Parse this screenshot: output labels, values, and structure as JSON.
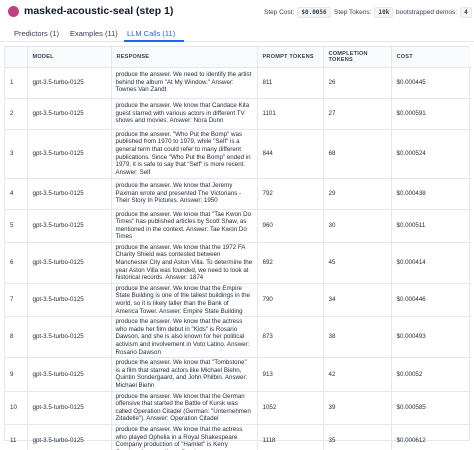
{
  "header": {
    "title": "masked-acoustic-seal (step 1)",
    "stats": [
      {
        "label": "Step Cost:",
        "value": "$0.0056"
      },
      {
        "label": "Step Tokens:",
        "value": "10k"
      },
      {
        "label": "bootstrapped demos:",
        "value": "4"
      }
    ],
    "accent_color": "#c0417f"
  },
  "tabs": [
    {
      "label": "Predictors (1)",
      "active": false
    },
    {
      "label": "Examples (11)",
      "active": false
    },
    {
      "label": "LLM Calls (11)",
      "active": true
    }
  ],
  "table": {
    "columns": [
      "",
      "MODEL",
      "RESPONSE",
      "PROMPT TOKENS",
      "COMPLETION TOKENS",
      "COST"
    ],
    "rows": [
      {
        "index": "1",
        "model": "gpt-3.5-turbo-0125",
        "response": "produce the answer. We need to identify the artist behind the album \"At My Window.\" Answer: Townes Van Zandt",
        "prompt_tokens": "811",
        "completion_tokens": "26",
        "cost": "$0.000445"
      },
      {
        "index": "2",
        "model": "gpt-3.5-turbo-0125",
        "response": "produce the answer. We know that Candace Kita guest starred with various actors in different TV shows and movies. Answer: Nora Dunn",
        "prompt_tokens": "1101",
        "completion_tokens": "27",
        "cost": "$0.000591"
      },
      {
        "index": "3",
        "model": "gpt-3.5-turbo-0125",
        "response": "produce the answer. \"Who Put the Bomp\" was published from 1970 to 1979, while \"Self\" is a general term that could refer to many different publications. Since \"Who Put the Bomp\" ended in 1979, it is safe to say that \"Self\" is more recent. Answer: Self",
        "prompt_tokens": "844",
        "completion_tokens": "68",
        "cost": "$0.000524"
      },
      {
        "index": "4",
        "model": "gpt-3.5-turbo-0125",
        "response": "produce the answer. We know that Jeremy Paxman wrote and presented The Victorians - Their Story In Pictures. Answer: 1950",
        "prompt_tokens": "792",
        "completion_tokens": "29",
        "cost": "$0.000438"
      },
      {
        "index": "5",
        "model": "gpt-3.5-turbo-0125",
        "response": "produce the answer. We know that \"Tae Kwon Do Times\" has published articles by Scott Shaw, as mentioned in the context. Answer: Tae Kwon Do Times",
        "prompt_tokens": "960",
        "completion_tokens": "30",
        "cost": "$0.000511"
      },
      {
        "index": "6",
        "model": "gpt-3.5-turbo-0125",
        "response": "produce the answer. We know that the 1972 FA Charity Shield was contested between Manchester City and Aston Villa. To determine the year Aston Villa was founded, we need to look at historical records. Answer: 1874",
        "prompt_tokens": "692",
        "completion_tokens": "45",
        "cost": "$0.000414"
      },
      {
        "index": "7",
        "model": "gpt-3.5-turbo-0125",
        "response": "produce the answer. We know that the Empire State Building is one of the tallest buildings in the world, so it is likely taller than the Bank of America Tower. Answer: Empire State Building",
        "prompt_tokens": "790",
        "completion_tokens": "34",
        "cost": "$0.000446"
      },
      {
        "index": "8",
        "model": "gpt-3.5-turbo-0125",
        "response": "produce the answer. We know that the actress who made her film debut in \"Kids\" is Rosario Dawson, and she is also known for her political activism and involvement in Voto Latino. Answer: Rosario Dawson",
        "prompt_tokens": "873",
        "completion_tokens": "38",
        "cost": "$0.000493"
      },
      {
        "index": "9",
        "model": "gpt-3.5-turbo-0125",
        "response": "produce the answer. We know that \"Tombstone\" is a film that starred actors like Michael Biehn, Quintin Sondergaard, and John Philbin. Answer: Michael Biehn",
        "prompt_tokens": "913",
        "completion_tokens": "42",
        "cost": "$0.00052"
      },
      {
        "index": "10",
        "model": "gpt-3.5-turbo-0125",
        "response": "produce the answer. We know that the German offensive that started the Battle of Kursk was called Operation Citadel (German: \"Unternehmen Zitadelle\"). Answer: Operation Citadel",
        "prompt_tokens": "1052",
        "completion_tokens": "39",
        "cost": "$0.000585"
      },
      {
        "index": "11",
        "model": "gpt-3.5-turbo-0125",
        "response": "produce the answer. We know that the actress who played Ophelia in a Royal Shakespeare Company production of \"Hamlet\" is Kerry Condon. Answer: Kerry Condon",
        "prompt_tokens": "1118",
        "completion_tokens": "35",
        "cost": "$0.000612"
      }
    ]
  }
}
